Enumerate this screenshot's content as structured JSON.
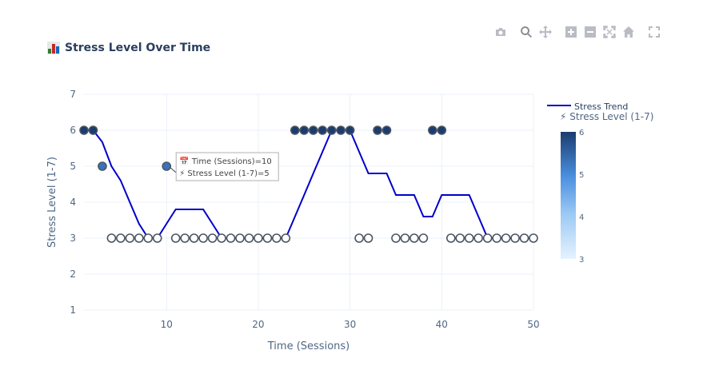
{
  "title": "📊 Stress Level Over Time",
  "title_text": "Stress Level Over Time",
  "modebar": [
    {
      "name": "camera-icon"
    },
    {
      "name": "zoom-icon"
    },
    {
      "name": "pan-icon"
    },
    {
      "name": "zoom-in-icon"
    },
    {
      "name": "zoom-out-icon"
    },
    {
      "name": "autoscale-icon"
    },
    {
      "name": "home-icon"
    },
    {
      "name": "fullscreen-icon"
    }
  ],
  "chart_data": {
    "type": "scatter",
    "title": "📊 Stress Level Over Time",
    "xlabel": "Time (Sessions)",
    "ylabel": "Stress Level (1-7)",
    "xlim": [
      1,
      50
    ],
    "ylim": [
      1,
      7
    ],
    "xticks": [
      10,
      20,
      30,
      40,
      50
    ],
    "yticks": [
      1,
      2,
      3,
      4,
      5,
      6,
      7
    ],
    "grid": true,
    "x": [
      1,
      2,
      3,
      4,
      5,
      6,
      7,
      8,
      9,
      10,
      11,
      12,
      13,
      14,
      15,
      16,
      17,
      18,
      19,
      20,
      21,
      22,
      23,
      24,
      25,
      26,
      27,
      28,
      29,
      30,
      31,
      32,
      33,
      34,
      35,
      36,
      37,
      38,
      39,
      40,
      41,
      42,
      43,
      44,
      45,
      46,
      47,
      48,
      49,
      50
    ],
    "stress": [
      6,
      6,
      5,
      3,
      3,
      3,
      3,
      3,
      3,
      5,
      3,
      3,
      3,
      3,
      3,
      3,
      3,
      3,
      3,
      3,
      3,
      3,
      3,
      6,
      6,
      6,
      6,
      6,
      6,
      6,
      3,
      3,
      6,
      6,
      3,
      3,
      3,
      3,
      6,
      6,
      3,
      3,
      3,
      3,
      3,
      3,
      3,
      3,
      3,
      3
    ],
    "trend": {
      "name": "Stress Trend",
      "color": "#0000cc",
      "x": [
        1,
        2,
        3,
        4,
        5,
        6,
        7,
        8,
        9,
        10,
        11,
        12,
        13,
        14,
        15,
        16,
        17,
        18,
        19,
        20,
        21,
        22,
        23,
        24,
        25,
        26,
        27,
        28,
        29,
        30,
        31,
        32,
        33,
        34,
        35,
        36,
        37,
        38,
        39,
        40,
        41,
        42,
        43,
        44,
        45,
        46,
        47,
        48,
        49,
        50
      ],
      "y": [
        6,
        6,
        5.67,
        5,
        4.6,
        4,
        3.4,
        3,
        3,
        3.4,
        3.8,
        3.8,
        3.8,
        3.8,
        3.4,
        3,
        3,
        3,
        3,
        3,
        3,
        3,
        3,
        3.6,
        4.2,
        4.8,
        5.4,
        6,
        6,
        6,
        5.4,
        4.8,
        4.8,
        4.8,
        4.2,
        4.2,
        4.2,
        3.6,
        3.6,
        4.2,
        4.2,
        4.2,
        4.2,
        3.6,
        3,
        3,
        3,
        3,
        3,
        3
      ]
    },
    "legend": {
      "placement": "top-right",
      "entries": [
        "Stress Trend"
      ],
      "colorbar_title": "⚡ Stress Level (1-7)",
      "colorbar_ticks": [
        3,
        4,
        5,
        6
      ],
      "colorbar_range": [
        3,
        6
      ]
    },
    "tooltip": {
      "point_x": 10,
      "point_y": 5,
      "line1": "📅 Time (Sessions)=10",
      "line2": "⚡ Stress Level (1-7)=5"
    },
    "colors": {
      "low": "#ffffff",
      "mid": "#4a8fe0",
      "high": "#1b3c6e",
      "grid": "#ebf0f8",
      "axis_text": "#506784"
    }
  }
}
